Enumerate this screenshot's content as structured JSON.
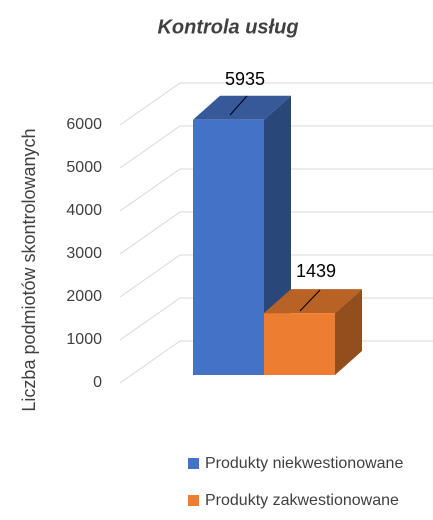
{
  "chart_data": {
    "type": "bar3d",
    "title": "Kontrola usług",
    "y_label": "Liczba podmiotów skontrolowanych",
    "series": [
      {
        "name": "Produkty niekwestionowane",
        "color": "#4472c4",
        "values": [
          5935
        ]
      },
      {
        "name": "Produkty zakwestionowane",
        "color": "#ed7d31",
        "values": [
          1439
        ]
      }
    ],
    "ylim": [
      0,
      6000
    ],
    "yticks": [
      0,
      1000,
      2000,
      3000,
      4000,
      5000,
      6000
    ],
    "grid": true,
    "legend": "bottom"
  }
}
